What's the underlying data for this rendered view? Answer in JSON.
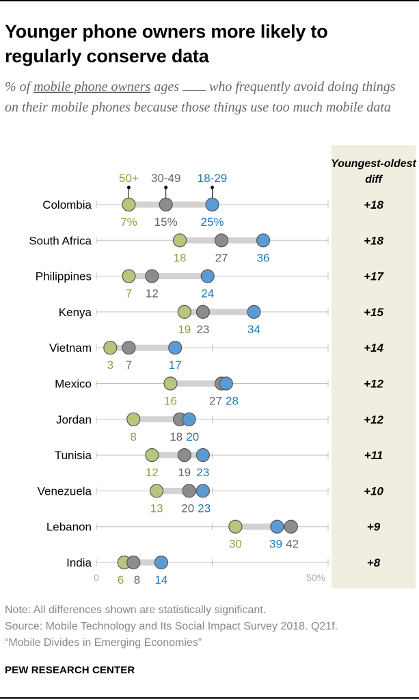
{
  "title": "Younger phone owners more likely to regularly conserve data",
  "subtitle": {
    "part1": "% of ",
    "underlined": "mobile phone owners",
    "part2": " ages ",
    "part3": " who frequently avoid doing things on their mobile phones because those things use too much mobile data"
  },
  "colors": {
    "young": "#5b9bd5",
    "young_text": "#1f77b4",
    "mid": "#8c8c8c",
    "mid_text": "#666666",
    "old": "#b5c77a",
    "old_text": "#8aa43a",
    "range_bar": "#d2d2d2",
    "axis_line": "#bfbfbf",
    "diff_panel": "#efeee0"
  },
  "chart_data": {
    "type": "dot",
    "title": "Younger phone owners more likely to regularly conserve data",
    "series_names": [
      "50+",
      "30-49",
      "18-29"
    ],
    "xlim": [
      0,
      50
    ],
    "axis_labels": [
      "0",
      "50%"
    ],
    "diff_header": "Youngest-oldest diff",
    "categories": [
      "Colombia",
      "South Africa",
      "Philippines",
      "Kenya",
      "Vietnam",
      "Mexico",
      "Jordan",
      "Tunisia",
      "Venezuela",
      "Lebanon",
      "India"
    ],
    "rows": [
      {
        "country": "Colombia",
        "old": 7,
        "mid": 15,
        "young": 25,
        "old_label": "7%",
        "mid_label": "15%",
        "young_label": "25%",
        "diff": "+18"
      },
      {
        "country": "South Africa",
        "old": 18,
        "mid": 27,
        "young": 36,
        "old_label": "18",
        "mid_label": "27",
        "young_label": "36",
        "diff": "+18"
      },
      {
        "country": "Philippines",
        "old": 7,
        "mid": 12,
        "young": 24,
        "old_label": "7",
        "mid_label": "12",
        "young_label": "24",
        "diff": "+17"
      },
      {
        "country": "Kenya",
        "old": 19,
        "mid": 23,
        "young": 34,
        "old_label": "19",
        "mid_label": "23",
        "young_label": "34",
        "diff": "+15"
      },
      {
        "country": "Vietnam",
        "old": 3,
        "mid": 7,
        "young": 17,
        "old_label": "3",
        "mid_label": "7",
        "young_label": "17",
        "diff": "+14"
      },
      {
        "country": "Mexico",
        "old": 16,
        "mid": 27,
        "young": 28,
        "old_label": "16",
        "mid_label": "27",
        "young_label": "28",
        "diff": "+12"
      },
      {
        "country": "Jordan",
        "old": 8,
        "mid": 18,
        "young": 20,
        "old_label": "8",
        "mid_label": "18",
        "young_label": "20",
        "diff": "+12"
      },
      {
        "country": "Tunisia",
        "old": 12,
        "mid": 19,
        "young": 23,
        "old_label": "12",
        "mid_label": "19",
        "young_label": "23",
        "diff": "+11"
      },
      {
        "country": "Venezuela",
        "old": 13,
        "mid": 20,
        "young": 23,
        "old_label": "13",
        "mid_label": "20",
        "young_label": "23",
        "diff": "+10"
      },
      {
        "country": "Lebanon",
        "old": 30,
        "mid": 42,
        "young": 39,
        "old_label": "30",
        "mid_label": "42",
        "young_label": "39",
        "diff": "+9"
      },
      {
        "country": "India",
        "old": 6,
        "mid": 8,
        "young": 14,
        "old_label": "6",
        "mid_label": "8",
        "young_label": "14",
        "diff": "+8"
      }
    ]
  },
  "notes": {
    "note": "Note: All differences shown are statistically significant.",
    "source": "Source: Mobile Technology and Its Social Impact Survey 2018. Q21f.",
    "report": "“Mobile Divides in Emerging Economies”"
  },
  "brand": "PEW RESEARCH CENTER"
}
